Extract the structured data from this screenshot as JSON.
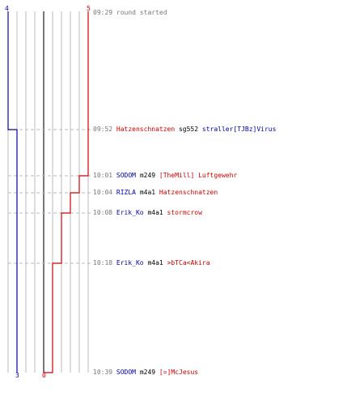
{
  "colors": {
    "team_a": "#0000aa",
    "team_b": "#cc0000",
    "grid": "#bbbbbb",
    "center": "#777777",
    "dash": "#bbbbbb",
    "time_text": "#777777",
    "weapon_text": "#000000"
  },
  "scoreboard": {
    "team_a": {
      "score_start": "4",
      "score_end": "3"
    },
    "team_b": {
      "score_start": "5",
      "score_end": "0"
    }
  },
  "chart_data": {
    "type": "line",
    "x_range": [
      4,
      -5
    ],
    "series": [
      {
        "team": "team_a",
        "values": [
          4,
          3
        ]
      },
      {
        "team": "team_b",
        "values": [
          5,
          4,
          3,
          2,
          1,
          0
        ]
      }
    ]
  },
  "events": [
    {
      "time": "09:29",
      "text": "round started",
      "text_color": "time_text"
    },
    {
      "time": "09:52",
      "killer": "Hatzenschnatzen",
      "killer_team": "team_b",
      "weapon": "sg552",
      "victim": "straller[TJBz]Virus",
      "victim_team": "team_a"
    },
    {
      "time": "10:01",
      "killer": "SODOM",
      "killer_team": "team_a",
      "weapon": "m249",
      "victim": "[TheMill] Luftgewehr",
      "victim_team": "team_b"
    },
    {
      "time": "10:04",
      "killer": "RIZLA",
      "killer_team": "team_a",
      "weapon": "m4a1",
      "victim": "Hatzenschnatzen",
      "victim_team": "team_b"
    },
    {
      "time": "10:08",
      "killer": "Erik_Ko",
      "killer_team": "team_a",
      "weapon": "m4a1",
      "victim": "stormcrow",
      "victim_team": "team_b"
    },
    {
      "time": "10:18",
      "killer": "Erik_Ko",
      "killer_team": "team_a",
      "weapon": "m4a1",
      "victim": ">bTCa<Akira",
      "victim_team": "team_b"
    },
    {
      "time": "10:39",
      "killer": "SODOM",
      "killer_team": "team_a",
      "weapon": "m249",
      "victim": "[=]McJesus",
      "victim_team": "team_b"
    }
  ]
}
